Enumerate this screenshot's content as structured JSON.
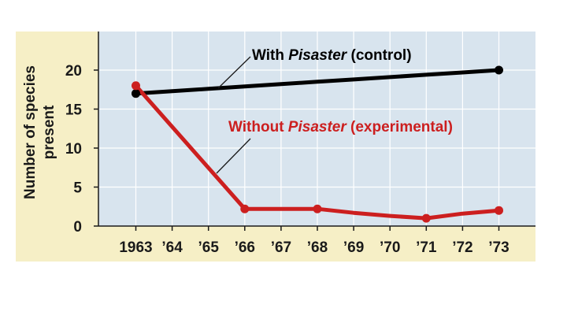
{
  "colors": {
    "panel_background": "#f6efc6",
    "plot_background": "#d8e4ee",
    "grid": "#ffffff",
    "with_series": "#000000",
    "without_series": "#cc1f1f",
    "text": "#1a1a1a"
  },
  "chart_data": {
    "type": "line",
    "ylabel_line1": "Number of species",
    "ylabel_line2": "present",
    "xlabel": "",
    "ylim": [
      0,
      25
    ],
    "xlim": [
      1961.5,
      1974
    ],
    "grid": true,
    "y_ticks": [
      0,
      5,
      10,
      15,
      20
    ],
    "x_ticks": [
      {
        "x": 1963,
        "label": "1963"
      },
      {
        "x": 1964,
        "label": "’64"
      },
      {
        "x": 1965,
        "label": "’65"
      },
      {
        "x": 1966,
        "label": "’66"
      },
      {
        "x": 1967,
        "label": "’67"
      },
      {
        "x": 1968,
        "label": "’68"
      },
      {
        "x": 1969,
        "label": "’69"
      },
      {
        "x": 1970,
        "label": "’70"
      },
      {
        "x": 1971,
        "label": "’71"
      },
      {
        "x": 1972,
        "label": "’72"
      },
      {
        "x": 1973,
        "label": "’73"
      }
    ],
    "series": [
      {
        "key": "with",
        "name_prefix": "With ",
        "name_italic": "Pisaster",
        "name_suffix": " (control)",
        "color": "#000000",
        "points": [
          [
            1963,
            17
          ],
          [
            1973,
            20
          ]
        ],
        "curve": [
          [
            1963,
            17
          ],
          [
            1964,
            17.3
          ],
          [
            1965,
            17.6
          ],
          [
            1966,
            17.9
          ],
          [
            1967,
            18.2
          ],
          [
            1968,
            18.5
          ],
          [
            1969,
            18.8
          ],
          [
            1970,
            19.1
          ],
          [
            1971,
            19.4
          ],
          [
            1972,
            19.7
          ],
          [
            1973,
            20
          ]
        ]
      },
      {
        "key": "without",
        "name_prefix": "Without ",
        "name_italic": "Pisaster",
        "name_suffix": " (experimental)",
        "color": "#cc1f1f",
        "points": [
          [
            1963,
            18
          ],
          [
            1966,
            2.2
          ],
          [
            1968,
            2.2
          ],
          [
            1971,
            1
          ],
          [
            1973,
            2
          ]
        ],
        "curve": [
          [
            1963,
            18
          ],
          [
            1966,
            2.2
          ],
          [
            1968,
            2.2
          ],
          [
            1969,
            1.7
          ],
          [
            1970,
            1.3
          ],
          [
            1971,
            1
          ],
          [
            1972,
            1.6
          ],
          [
            1973,
            2
          ]
        ]
      }
    ]
  }
}
